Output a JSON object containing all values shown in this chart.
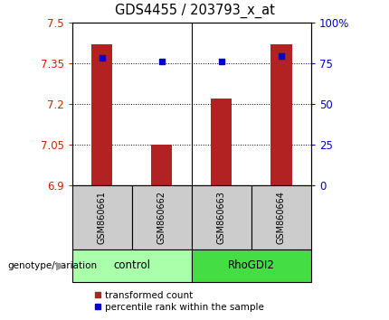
{
  "title": "GDS4455 / 203793_x_at",
  "samples": [
    "GSM860661",
    "GSM860662",
    "GSM860663",
    "GSM860664"
  ],
  "groups": [
    "control",
    "control",
    "RhoGDI2",
    "RhoGDI2"
  ],
  "red_values": [
    7.42,
    7.05,
    7.22,
    7.42
  ],
  "blue_values": [
    7.37,
    7.355,
    7.357,
    7.375
  ],
  "ylim_left": [
    6.9,
    7.5
  ],
  "yticks_left": [
    6.9,
    7.05,
    7.2,
    7.35,
    7.5
  ],
  "ytick_labels_left": [
    "6.9",
    "7.05",
    "7.2",
    "7.35",
    "7.5"
  ],
  "yticks_right": [
    0,
    25,
    50,
    75,
    100
  ],
  "ytick_labels_right": [
    "0",
    "25",
    "50",
    "75",
    "100%"
  ],
  "bar_color": "#B22222",
  "dot_color": "#0000CC",
  "left_tick_color": "#CC2200",
  "right_tick_color": "#0000CC",
  "group_colors": {
    "control": "#AAFFAA",
    "RhoGDI2": "#44DD44"
  },
  "group_label": "genotype/variation",
  "legend_items": [
    "transformed count",
    "percentile rank within the sample"
  ],
  "bar_bottom": 6.9,
  "bar_width": 0.35,
  "hgrid_lines": [
    7.05,
    7.2,
    7.35
  ]
}
